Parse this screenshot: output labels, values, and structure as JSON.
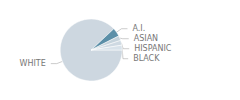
{
  "chart_data": {
    "type": "pie",
    "categories": [
      "WHITE",
      "A.I.",
      "ASIAN",
      "HISPANIC",
      "BLACK"
    ],
    "values": [
      88,
      4.5,
      2.5,
      2.5,
      2.5
    ],
    "colors": [
      "#cdd7e0",
      "#5b8fa8",
      "#c5d3dc",
      "#ced9e2",
      "#d8e2ea"
    ]
  }
}
